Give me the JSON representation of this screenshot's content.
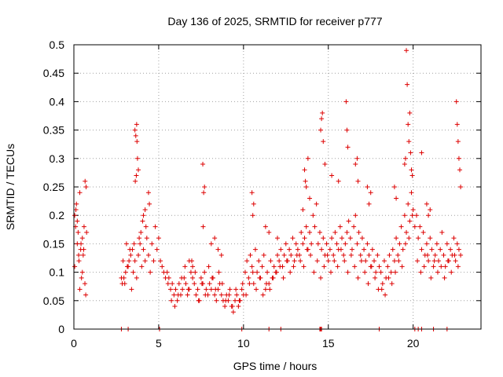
{
  "chart_data": {
    "type": "scatter",
    "title": "Day 136 of 2025, SRMTID for receiver p777",
    "xlabel": "GPS time / hours",
    "ylabel": "SRMTID / TECUs",
    "xlim": [
      0,
      24
    ],
    "ylim": [
      0,
      0.5
    ],
    "xticks": [
      0,
      5,
      10,
      15,
      20
    ],
    "xtick_labels": [
      "0",
      "5",
      "10",
      "15",
      "20"
    ],
    "yticks": [
      0,
      0.05,
      0.1,
      0.15,
      0.2,
      0.25,
      0.3,
      0.35,
      0.4,
      0.45,
      0.5
    ],
    "ytick_labels": [
      "0",
      "0.05",
      "0.1",
      "0.15",
      "0.2",
      "0.25",
      "0.3",
      "0.35",
      "0.4",
      "0.45",
      "0.5"
    ],
    "grid": true,
    "marker": "+",
    "color": "#dd0000",
    "series": [
      {
        "name": "SRMTID",
        "x": [
          0.05,
          0.1,
          0.15,
          0.2,
          0.25,
          0.3,
          0.35,
          0.4,
          0.45,
          0.5,
          0.55,
          0.6,
          0.65,
          0.7,
          0.75,
          0.05,
          0.12,
          0.2,
          0.28,
          0.35,
          0.42,
          0.5,
          0.58,
          0.66,
          0.72,
          2.8,
          2.9,
          3.0,
          3.1,
          3.2,
          3.3,
          3.4,
          3.5,
          3.6,
          3.7,
          3.8,
          3.9,
          4.0,
          4.1,
          4.2,
          4.3,
          4.4,
          4.5,
          4.6,
          4.7,
          4.8,
          4.9,
          5.0,
          5.1,
          5.2,
          5.3,
          5.4,
          3.6,
          3.65,
          3.7,
          3.75,
          3.8,
          3.62,
          3.68,
          3.72,
          4.4,
          4.45,
          4.1,
          4.2,
          4.25,
          4.05,
          3.95,
          3.85,
          3.55,
          3.45,
          3.35,
          3.25,
          3.15,
          3.05,
          2.95,
          2.85,
          5.5,
          5.6,
          5.7,
          5.8,
          5.9,
          6.0,
          6.1,
          6.2,
          6.3,
          6.4,
          6.5,
          6.6,
          6.7,
          6.8,
          6.9,
          7.0,
          7.1,
          7.2,
          7.3,
          7.4,
          7.5,
          7.6,
          7.7,
          7.8,
          7.9,
          8.0,
          8.1,
          8.2,
          8.3,
          8.4,
          8.5,
          8.6,
          8.7,
          8.8,
          8.9,
          9.0,
          9.1,
          9.2,
          9.3,
          9.4,
          9.5,
          9.6,
          9.7,
          9.8,
          9.9,
          10.0,
          5.55,
          5.75,
          5.95,
          6.15,
          6.35,
          6.55,
          6.75,
          6.95,
          7.15,
          7.35,
          7.55,
          7.75,
          7.95,
          8.15,
          8.35,
          8.55,
          8.75,
          8.95,
          9.15,
          9.35,
          9.55,
          9.75,
          9.95,
          7.6,
          7.65,
          7.7,
          7.62,
          8.3,
          8.5,
          8.7,
          6.8,
          7.0,
          8.1,
          10.1,
          10.2,
          10.3,
          10.4,
          10.5,
          10.6,
          10.7,
          10.8,
          10.9,
          11.0,
          11.1,
          11.2,
          11.3,
          11.4,
          11.5,
          11.6,
          11.7,
          11.8,
          11.9,
          12.0,
          12.1,
          12.2,
          12.3,
          12.4,
          12.5,
          12.6,
          12.7,
          12.8,
          12.9,
          13.0,
          13.1,
          13.2,
          13.3,
          13.4,
          13.5,
          13.6,
          13.7,
          13.8,
          13.9,
          14.0,
          10.15,
          10.35,
          10.55,
          10.75,
          10.95,
          11.15,
          11.35,
          11.55,
          11.75,
          11.95,
          12.15,
          12.35,
          12.55,
          12.75,
          12.95,
          13.15,
          13.35,
          13.55,
          13.75,
          13.95,
          10.5,
          10.6,
          10.55,
          11.3,
          11.5,
          12.0,
          13.5,
          13.7,
          13.9,
          13.6,
          13.8,
          13.65,
          14.1,
          14.2,
          14.3,
          14.4,
          14.5,
          14.6,
          14.7,
          14.8,
          14.9,
          15.0,
          15.1,
          15.2,
          15.3,
          15.4,
          15.5,
          15.6,
          15.7,
          15.8,
          15.9,
          16.0,
          16.1,
          16.2,
          16.3,
          16.4,
          16.5,
          16.6,
          16.7,
          16.8,
          16.9,
          17.0,
          17.1,
          17.2,
          17.3,
          17.4,
          17.5,
          17.6,
          17.7,
          17.8,
          17.9,
          18.0,
          14.15,
          14.35,
          14.55,
          14.75,
          14.95,
          15.15,
          15.35,
          15.55,
          15.75,
          15.95,
          16.15,
          16.35,
          16.55,
          16.75,
          16.95,
          17.15,
          17.35,
          17.55,
          17.75,
          17.95,
          14.6,
          14.65,
          14.7,
          14.55,
          14.8,
          15.2,
          16.05,
          16.1,
          16.15,
          16.6,
          16.7,
          16.75,
          17.3,
          17.5,
          17.4,
          15.6,
          18.1,
          18.2,
          18.3,
          18.4,
          18.5,
          18.6,
          18.7,
          18.8,
          18.9,
          19.0,
          19.1,
          19.2,
          19.3,
          19.4,
          19.5,
          19.6,
          19.7,
          19.8,
          19.9,
          20.0,
          20.1,
          18.15,
          18.35,
          18.55,
          18.75,
          18.95,
          19.15,
          19.35,
          19.55,
          19.75,
          19.95,
          19.6,
          19.65,
          19.7,
          19.75,
          19.8,
          19.85,
          19.9,
          19.95,
          19.55,
          19.5,
          18.9,
          19.0,
          20.2,
          20.3,
          20.4,
          20.5,
          20.6,
          20.7,
          20.8,
          20.9,
          21.0,
          21.1,
          21.2,
          21.3,
          21.4,
          21.5,
          21.6,
          21.7,
          21.8,
          21.9,
          22.0,
          22.1,
          22.2,
          22.3,
          22.4,
          22.5,
          22.6,
          22.7,
          22.8,
          20.25,
          20.45,
          20.65,
          20.85,
          21.05,
          21.25,
          21.45,
          21.65,
          21.85,
          22.05,
          22.25,
          22.45,
          22.65,
          22.6,
          22.65,
          22.7,
          22.75,
          22.8,
          22.55,
          20.8,
          20.9,
          21.0,
          20.5
        ],
        "y": [
          0.2,
          0.18,
          0.22,
          0.15,
          0.17,
          0.12,
          0.24,
          0.14,
          0.09,
          0.16,
          0.13,
          0.18,
          0.08,
          0.06,
          0.17,
          0.11,
          0.21,
          0.19,
          0.13,
          0.07,
          0.15,
          0.1,
          0.14,
          0.26,
          0.25,
          0.09,
          0.12,
          0.08,
          0.15,
          0.11,
          0.14,
          0.07,
          0.1,
          0.12,
          0.09,
          0.13,
          0.15,
          0.11,
          0.14,
          0.12,
          0.16,
          0.13,
          0.1,
          0.15,
          0.12,
          0.18,
          0.14,
          0.16,
          0.12,
          0.11,
          0.1,
          0.09,
          0.35,
          0.34,
          0.36,
          0.3,
          0.28,
          0.26,
          0.27,
          0.33,
          0.24,
          0.22,
          0.2,
          0.21,
          0.18,
          0.19,
          0.17,
          0.16,
          0.15,
          0.14,
          0.13,
          0.12,
          0.11,
          0.1,
          0.09,
          0.08,
          0.1,
          0.09,
          0.07,
          0.08,
          0.06,
          0.07,
          0.05,
          0.08,
          0.06,
          0.07,
          0.09,
          0.08,
          0.06,
          0.07,
          0.1,
          0.09,
          0.08,
          0.06,
          0.07,
          0.05,
          0.09,
          0.08,
          0.1,
          0.07,
          0.06,
          0.08,
          0.07,
          0.09,
          0.06,
          0.05,
          0.07,
          0.08,
          0.06,
          0.05,
          0.04,
          0.06,
          0.05,
          0.07,
          0.04,
          0.03,
          0.05,
          0.06,
          0.04,
          0.05,
          0.07,
          0.06,
          0.08,
          0.05,
          0.04,
          0.06,
          0.09,
          0.11,
          0.07,
          0.12,
          0.1,
          0.05,
          0.08,
          0.06,
          0.11,
          0.09,
          0.07,
          0.1,
          0.08,
          0.05,
          0.06,
          0.04,
          0.07,
          0.05,
          0.08,
          0.29,
          0.24,
          0.25,
          0.18,
          0.16,
          0.14,
          0.13,
          0.12,
          0.11,
          0.15,
          0.1,
          0.12,
          0.09,
          0.13,
          0.11,
          0.08,
          0.14,
          0.1,
          0.12,
          0.09,
          0.11,
          0.13,
          0.07,
          0.1,
          0.08,
          0.12,
          0.09,
          0.11,
          0.1,
          0.13,
          0.12,
          0.14,
          0.11,
          0.13,
          0.15,
          0.12,
          0.14,
          0.13,
          0.16,
          0.12,
          0.15,
          0.14,
          0.13,
          0.17,
          0.15,
          0.16,
          0.18,
          0.14,
          0.17,
          0.15,
          0.06,
          0.08,
          0.1,
          0.07,
          0.09,
          0.06,
          0.08,
          0.07,
          0.09,
          0.1,
          0.11,
          0.09,
          0.12,
          0.1,
          0.11,
          0.13,
          0.12,
          0.11,
          0.14,
          0.13,
          0.24,
          0.22,
          0.2,
          0.18,
          0.17,
          0.16,
          0.21,
          0.25,
          0.23,
          0.28,
          0.3,
          0.26,
          0.2,
          0.18,
          0.22,
          0.15,
          0.17,
          0.14,
          0.16,
          0.13,
          0.15,
          0.12,
          0.14,
          0.16,
          0.13,
          0.17,
          0.15,
          0.14,
          0.18,
          0.16,
          0.13,
          0.15,
          0.17,
          0.19,
          0.16,
          0.14,
          0.18,
          0.2,
          0.15,
          0.17,
          0.13,
          0.16,
          0.14,
          0.12,
          0.15,
          0.13,
          0.11,
          0.14,
          0.12,
          0.1,
          0.13,
          0.11,
          0.1,
          0.12,
          0.09,
          0.11,
          0.13,
          0.1,
          0.12,
          0.11,
          0.14,
          0.12,
          0.1,
          0.13,
          0.11,
          0.09,
          0.12,
          0.1,
          0.08,
          0.11,
          0.09,
          0.07,
          0.37,
          0.38,
          0.33,
          0.35,
          0.29,
          0.27,
          0.4,
          0.35,
          0.32,
          0.29,
          0.3,
          0.26,
          0.25,
          0.24,
          0.22,
          0.26,
          0.1,
          0.08,
          0.12,
          0.09,
          0.11,
          0.13,
          0.1,
          0.14,
          0.12,
          0.16,
          0.13,
          0.15,
          0.18,
          0.14,
          0.2,
          0.17,
          0.22,
          0.19,
          0.24,
          0.21,
          0.18,
          0.07,
          0.06,
          0.09,
          0.08,
          0.1,
          0.12,
          0.11,
          0.15,
          0.16,
          0.2,
          0.49,
          0.43,
          0.36,
          0.33,
          0.38,
          0.31,
          0.28,
          0.27,
          0.3,
          0.29,
          0.25,
          0.23,
          0.2,
          0.16,
          0.18,
          0.14,
          0.17,
          0.13,
          0.15,
          0.12,
          0.16,
          0.14,
          0.11,
          0.13,
          0.15,
          0.12,
          0.14,
          0.17,
          0.13,
          0.11,
          0.15,
          0.12,
          0.14,
          0.13,
          0.16,
          0.12,
          0.15,
          0.14,
          0.13,
          0.12,
          0.1,
          0.11,
          0.13,
          0.09,
          0.12,
          0.1,
          0.11,
          0.09,
          0.12,
          0.1,
          0.13,
          0.11,
          0.36,
          0.33,
          0.3,
          0.28,
          0.25,
          0.4,
          0.22,
          0.2,
          0.21,
          0.31
        ],
        "zero_x": [
          2.8,
          3.2,
          5.05,
          9.9,
          11.5,
          12.2,
          14.5,
          14.55,
          14.6,
          18.0,
          20.1,
          20.3,
          20.5,
          21.2,
          22.0
        ]
      }
    ]
  }
}
